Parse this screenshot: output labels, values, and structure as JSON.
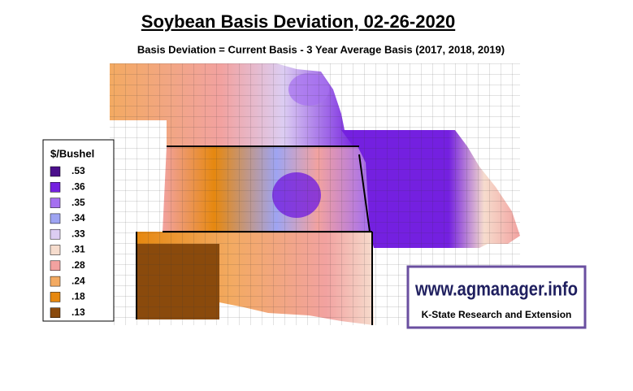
{
  "header": {
    "title": "Soybean Basis Deviation, 02-26-2020",
    "subtitle": "Basis Deviation = Current Basis - 3 Year Average Basis (2017, 2018, 2019)"
  },
  "legend": {
    "title": "$/Bushel",
    "items": [
      {
        "label": ".53",
        "color": "#4b0f8c"
      },
      {
        "label": ".36",
        "color": "#7420e0"
      },
      {
        "label": ".35",
        "color": "#a56ff0"
      },
      {
        "label": ".34",
        "color": "#9ea4f2"
      },
      {
        "label": ".33",
        "color": "#dccdf2"
      },
      {
        "label": ".31",
        "color": "#f6dccd"
      },
      {
        "label": ".28",
        "color": "#f2a2a0"
      },
      {
        "label": ".24",
        "color": "#f3aa62"
      },
      {
        "label": ".18",
        "color": "#e6880f"
      },
      {
        "label": ".13",
        "color": "#8a4a0c"
      }
    ]
  },
  "logo": {
    "url": "www.agmanager.info",
    "org": "K-State Research and Extension"
  }
}
